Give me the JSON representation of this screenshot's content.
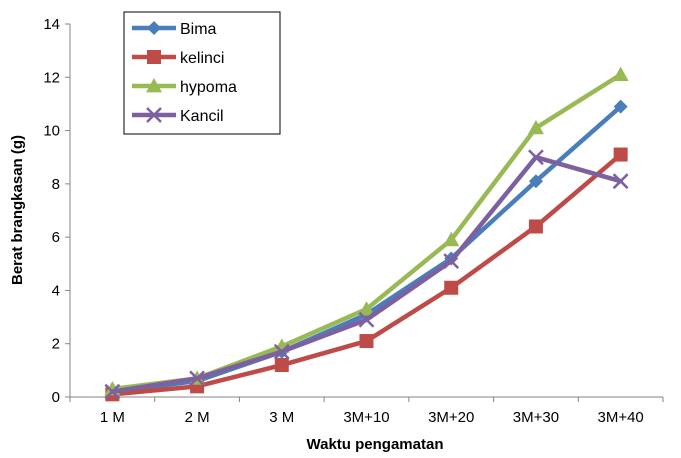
{
  "chart_data": {
    "type": "line",
    "title": "",
    "xlabel": "Waktu pengamatan",
    "ylabel": "Berat brangkasan (g)",
    "categories": [
      "1 M",
      "2 M",
      "3 M",
      "3M+10",
      "3M+20",
      "3M+30",
      "3M+40"
    ],
    "ylim": [
      0,
      14
    ],
    "yticks": [
      0,
      2,
      4,
      6,
      8,
      10,
      12,
      14
    ],
    "grid": false,
    "legend_position": "top-left",
    "series": [
      {
        "name": "Bima",
        "color": "#4a7ebb",
        "marker": "diamond",
        "values": [
          0.2,
          0.6,
          1.7,
          3.1,
          5.2,
          8.1,
          10.9
        ]
      },
      {
        "name": "kelinci",
        "color": "#be4b48",
        "marker": "square",
        "values": [
          0.1,
          0.4,
          1.2,
          2.1,
          4.1,
          6.4,
          9.1
        ]
      },
      {
        "name": "hypoma",
        "color": "#98b954",
        "marker": "triangle",
        "values": [
          0.3,
          0.7,
          1.9,
          3.3,
          5.9,
          10.1,
          12.1
        ]
      },
      {
        "name": "Kancil",
        "color": "#7d60a0",
        "marker": "x",
        "values": [
          0.2,
          0.7,
          1.7,
          2.9,
          5.1,
          9.0,
          8.1
        ]
      }
    ]
  }
}
